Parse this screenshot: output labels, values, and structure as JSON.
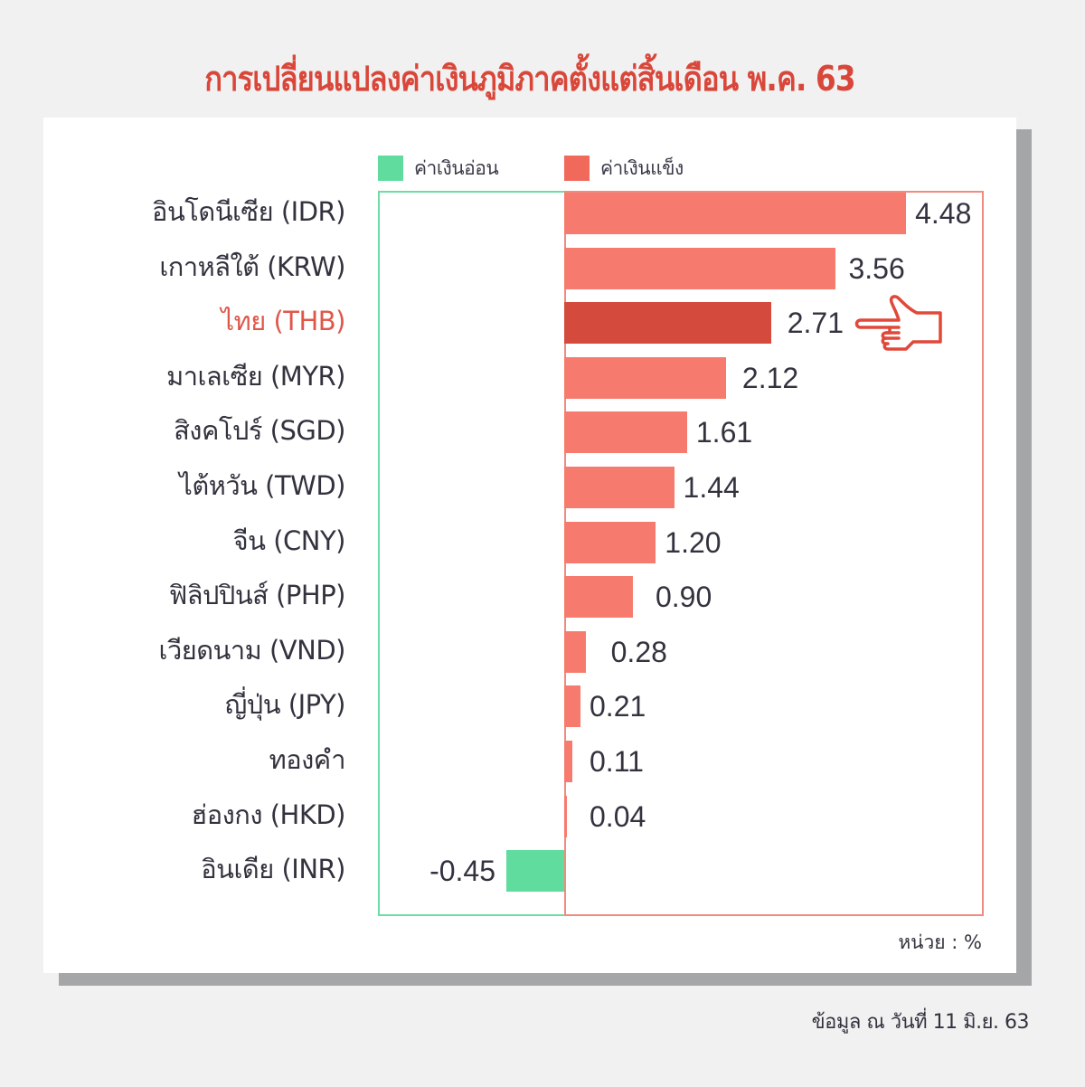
{
  "title": "การเปลี่ยนแปลงค่าเงินภูมิภาคตั้งแต่สิ้นเดือน พ.ค. 63",
  "legend": {
    "weak": {
      "label": "ค่าเงินอ่อน",
      "color": "#5fdc9e"
    },
    "strong": {
      "label": "ค่าเงินแข็ง",
      "color": "#f67b6e"
    }
  },
  "highlight_color": "#d44b3e",
  "unit": "หน่วย : %",
  "source": "ข้อมูล ณ วันที่ 11 มิ.ย. 63",
  "rows": [
    {
      "label": "อินโดนีเซีย (IDR)",
      "value": "4.48"
    },
    {
      "label": "เกาหลีใต้ (KRW)",
      "value": "3.56"
    },
    {
      "label": "ไทย (THB)",
      "value": "2.71"
    },
    {
      "label": "มาเลเซีย (MYR)",
      "value": "2.12"
    },
    {
      "label": "สิงคโปร์ (SGD)",
      "value": "1.61"
    },
    {
      "label": "ไต้หวัน (TWD)",
      "value": "1.44"
    },
    {
      "label": "จีน (CNY)",
      "value": "1.20"
    },
    {
      "label": "ฟิลิปปินส์ (PHP)",
      "value": "0.90"
    },
    {
      "label": "เวียดนาม (VND)",
      "value": "0.28"
    },
    {
      "label": "ญี่ปุ่น (JPY)",
      "value": "0.21"
    },
    {
      "label": "ทองคำ",
      "value": "0.11"
    },
    {
      "label": "ฮ่องกง (HKD)",
      "value": "0.04"
    },
    {
      "label": "อินเดีย (INR)",
      "value": "-0.45"
    }
  ],
  "chart_data": {
    "type": "bar",
    "orientation": "horizontal",
    "title": "การเปลี่ยนแปลงค่าเงินภูมิภาคตั้งแต่สิ้นเดือน พ.ค. 63",
    "categories": [
      "อินโดนีเซีย (IDR)",
      "เกาหลีใต้ (KRW)",
      "ไทย (THB)",
      "มาเลเซีย (MYR)",
      "สิงคโปร์ (SGD)",
      "ไต้หวัน (TWD)",
      "จีน (CNY)",
      "ฟิลิปปินส์ (PHP)",
      "เวียดนาม (VND)",
      "ญี่ปุ่น (JPY)",
      "ทองคำ",
      "ฮ่องกง (HKD)",
      "อินเดีย (INR)"
    ],
    "values": [
      4.48,
      3.56,
      2.71,
      2.12,
      1.61,
      1.44,
      1.2,
      0.9,
      0.28,
      0.21,
      0.11,
      0.04,
      -0.45
    ],
    "highlighted_category": "ไทย (THB)",
    "legend": [
      "ค่าเงินอ่อน",
      "ค่าเงินแข็ง"
    ],
    "legend_position": "top",
    "xlabel": "",
    "ylabel": "",
    "unit": "%",
    "xlim": [
      -2.45,
      5.5
    ],
    "grid": false,
    "annotation": "pointing-hand icon next to ไทย (THB) bar",
    "note": "ข้อมูล ณ วันที่ 11 มิ.ย. 63"
  }
}
